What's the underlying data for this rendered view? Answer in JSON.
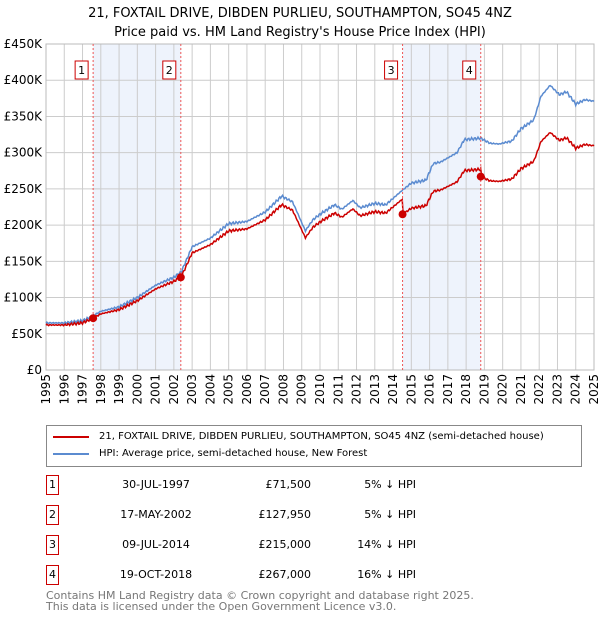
{
  "title": "21, FOXTAIL DRIVE, DIBDEN PURLIEU, SOUTHAMPTON, SO45 4NZ",
  "subtitle": "Price paid vs. HM Land Registry's House Price Index (HPI)",
  "chart_data": {
    "type": "line",
    "ylim": [
      0,
      450000
    ],
    "xlim": [
      1995,
      2025
    ],
    "yticks": [
      {
        "v": 0,
        "l": "£0"
      },
      {
        "v": 50000,
        "l": "£50K"
      },
      {
        "v": 100000,
        "l": "£100K"
      },
      {
        "v": 150000,
        "l": "£150K"
      },
      {
        "v": 200000,
        "l": "£200K"
      },
      {
        "v": 250000,
        "l": "£250K"
      },
      {
        "v": 300000,
        "l": "£300K"
      },
      {
        "v": 350000,
        "l": "£350K"
      },
      {
        "v": 400000,
        "l": "£400K"
      },
      {
        "v": 450000,
        "l": "£450K"
      }
    ],
    "xticks": [
      "1995",
      "1996",
      "1997",
      "1998",
      "1999",
      "2000",
      "2001",
      "2002",
      "2003",
      "2004",
      "2005",
      "2006",
      "2007",
      "2008",
      "2009",
      "2010",
      "2011",
      "2012",
      "2013",
      "2014",
      "2015",
      "2016",
      "2017",
      "2018",
      "2019",
      "2020",
      "2021",
      "2022",
      "2023",
      "2024",
      "2025"
    ],
    "hpi": {
      "name": "HPI: Average price, semi-detached house, New Forest",
      "color": "#5b8bd0",
      "x": [
        1995,
        1996,
        1997,
        1997.6,
        1998,
        1999,
        2000,
        2001,
        2002,
        2002.4,
        2003,
        2004,
        2005,
        2006,
        2007,
        2007.9,
        2008.5,
        2009.2,
        2009.6,
        2010,
        2010.8,
        2011.2,
        2011.8,
        2012.2,
        2013,
        2013.6,
        2014.5,
        2015,
        2015.8,
        2016.2,
        2016.6,
        2017.5,
        2017.9,
        2018.8,
        2019.3,
        2019.8,
        2020.5,
        2021,
        2021.7,
        2022.1,
        2022.6,
        2023.1,
        2023.5,
        2024,
        2024.5,
        2025
      ],
      "y": [
        65000,
        65000,
        68000,
        75000,
        81000,
        87000,
        100000,
        117000,
        128000,
        135000,
        170000,
        182000,
        202000,
        205000,
        218000,
        240000,
        232000,
        192000,
        207000,
        215000,
        228000,
        222000,
        234000,
        224000,
        230000,
        228000,
        248000,
        258000,
        262000,
        285000,
        287000,
        300000,
        318000,
        320000,
        313000,
        312000,
        316000,
        333000,
        345000,
        378000,
        393000,
        380000,
        384000,
        367000,
        373000,
        371000
      ]
    },
    "property": {
      "name": "21, FOXTAIL DRIVE, DIBDEN PURLIEU, SOUTHAMPTON, SO45 4NZ (semi-detached house)",
      "color": "#cc0000"
    },
    "sales": [
      {
        "n": "1",
        "x": 1997.58,
        "date": "30-JUL-1997",
        "price": 71500,
        "price_label": "£71,500",
        "hpi": "5% ↓ HPI"
      },
      {
        "n": "2",
        "x": 2002.38,
        "date": "17-MAY-2002",
        "price": 127950,
        "price_label": "£127,950",
        "hpi": "5% ↓ HPI"
      },
      {
        "n": "3",
        "x": 2014.52,
        "date": "09-JUL-2014",
        "price": 215000,
        "price_label": "£215,000",
        "hpi": "14% ↓ HPI"
      },
      {
        "n": "4",
        "x": 2018.8,
        "date": "19-OCT-2018",
        "price": 267000,
        "price_label": "£267,000",
        "hpi": "16% ↓ HPI"
      }
    ]
  },
  "footer": [
    "Contains HM Land Registry data © Crown copyright and database right 2025.",
    "This data is licensed under the Open Government Licence v3.0."
  ]
}
